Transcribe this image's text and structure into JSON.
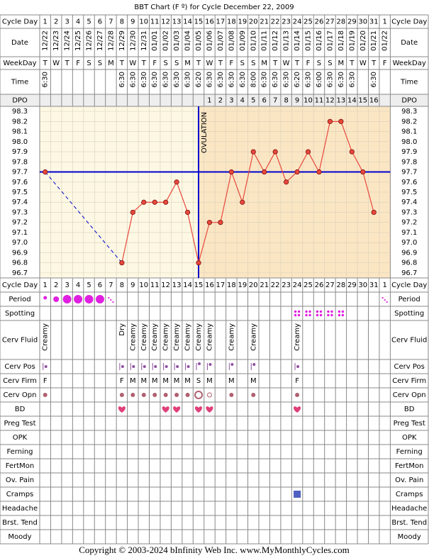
{
  "title": "BBT Chart (F º) for Cycle December 22, 2009",
  "footer": "Copyright © 2003-2024 bInfinity Web Inc.     www.MyMonthlyCycles.com",
  "row_labels": {
    "cycle_day": "Cycle Day",
    "date": "Date",
    "weekday": "WeekDay",
    "time": "Time",
    "dpo": "DPO",
    "period": "Period",
    "spotting": "Spotting",
    "cerv_fluid": "Cerv Fluid",
    "cerv_pos": "Cerv Pos",
    "cerv_firm": "Cerv Firm",
    "cerv_opn": "Cerv Opn",
    "bd": "BD",
    "preg_test": "Preg Test",
    "opk": "OPK",
    "ferning": "Ferning",
    "fertmon": "FertMon",
    "ov_pain": "Ov. Pain",
    "cramps": "Cramps",
    "headache": "Headache",
    "brst_tend": "Brst. Tend",
    "moody": "Moody"
  },
  "chart_data": {
    "type": "line",
    "categories": [
      1,
      2,
      3,
      4,
      5,
      6,
      7,
      8,
      9,
      10,
      11,
      12,
      13,
      14,
      15,
      16,
      17,
      18,
      19,
      20,
      21,
      22,
      23,
      24,
      25,
      26,
      27,
      28,
      29,
      30,
      31,
      1
    ],
    "dates": [
      "12/22",
      "12/23",
      "12/24",
      "12/25",
      "12/26",
      "12/27",
      "12/28",
      "12/29",
      "12/30",
      "12/31",
      "01/01",
      "01/02",
      "01/03",
      "01/04",
      "01/05",
      "01/06",
      "01/07",
      "01/08",
      "01/09",
      "01/10",
      "01/11",
      "01/12",
      "01/13",
      "01/14",
      "01/15",
      "01/16",
      "01/17",
      "01/18",
      "01/19",
      "01/20",
      "01/21",
      "01/22"
    ],
    "weekdays": [
      "T",
      "W",
      "T",
      "F",
      "S",
      "S",
      "M",
      "T",
      "W",
      "T",
      "F",
      "S",
      "S",
      "M",
      "T",
      "W",
      "T",
      "F",
      "S",
      "S",
      "M",
      "T",
      "W",
      "T",
      "F",
      "S",
      "S",
      "M",
      "T",
      "W",
      "T",
      "F"
    ],
    "times": [
      "6:30",
      null,
      null,
      null,
      null,
      null,
      null,
      "6:30",
      "6:30",
      "6:30",
      "6:30",
      "6:30",
      "6:30",
      "6:30",
      "6:20",
      "6:30",
      "6:30",
      "6:30",
      "6:30",
      "8:00",
      "6:30",
      "6:30",
      "6:30",
      "6:20",
      "6:30",
      "6:00",
      "6:30",
      "6:30",
      "6:30",
      null,
      "6:30",
      null
    ],
    "dpo": [
      null,
      null,
      null,
      null,
      null,
      null,
      null,
      null,
      null,
      null,
      null,
      null,
      null,
      null,
      null,
      1,
      2,
      3,
      4,
      5,
      6,
      7,
      8,
      9,
      10,
      11,
      12,
      13,
      14,
      15,
      16,
      null
    ],
    "values": [
      97.7,
      null,
      null,
      null,
      null,
      null,
      null,
      96.8,
      97.3,
      97.4,
      97.4,
      97.4,
      97.6,
      97.3,
      96.8,
      97.2,
      97.2,
      97.7,
      97.4,
      97.9,
      97.7,
      97.9,
      97.6,
      97.7,
      97.9,
      97.7,
      98.2,
      98.2,
      97.9,
      97.7,
      97.3,
      null
    ],
    "color": "#e8483c",
    "coverline": 97.7,
    "ovulation_day": 15,
    "ovulation_label": "OVULATION",
    "ylim": [
      96.65,
      98.35
    ],
    "yticks": [
      98.3,
      98.2,
      98.1,
      {
        "value": 98,
        "label": "98.0"
      },
      97.9,
      97.8,
      97.7,
      97.6,
      97.5,
      97.4,
      97.3,
      97.2,
      97.1,
      {
        "value": 97,
        "label": "97.0"
      },
      96.9,
      96.8,
      96.7
    ],
    "grid": true,
    "cerv_fluid": [
      "Creamy",
      null,
      null,
      null,
      null,
      null,
      null,
      "Dry",
      "Creamy",
      "Creamy",
      "Creamy",
      "Creamy",
      "Creamy",
      "Creamy",
      "Creamy",
      "Creamy",
      null,
      "Creamy",
      null,
      "Creamy",
      null,
      null,
      null,
      "Creamy",
      null,
      null,
      null,
      null,
      null,
      null,
      null,
      null
    ],
    "cerv_firm": [
      "F",
      null,
      null,
      null,
      null,
      null,
      null,
      "F",
      "M",
      "M",
      "M",
      "M",
      "M",
      "M",
      "S",
      "M",
      null,
      "M",
      null,
      "M",
      null,
      null,
      null,
      "F",
      null,
      null,
      null,
      null,
      null,
      null,
      null,
      null
    ]
  }
}
